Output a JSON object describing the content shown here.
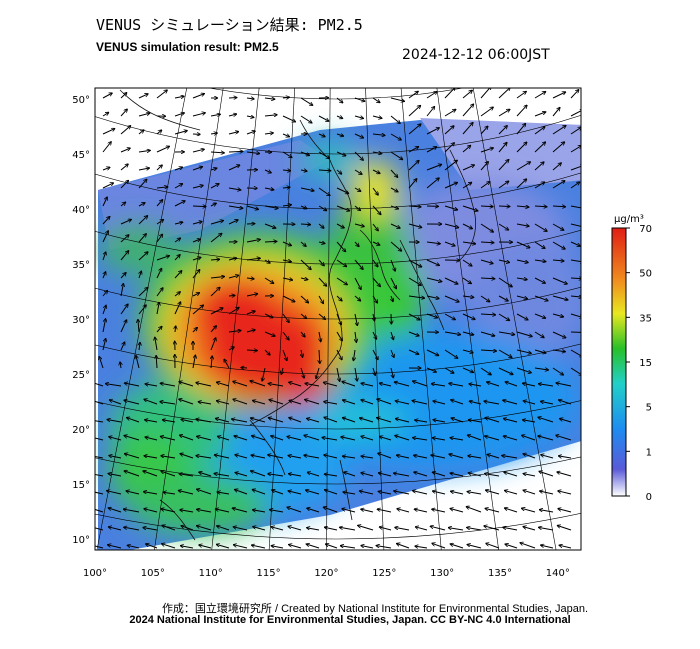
{
  "header": {
    "title_jp": "VENUS シミュレーション結果: PM2.5",
    "title_en": "VENUS simulation result: PM2.5",
    "timestamp": "2024-12-12 06:00JST"
  },
  "map": {
    "lon_ticks": [
      "100°",
      "105°",
      "110°",
      "115°",
      "120°",
      "125°",
      "130°",
      "135°",
      "140°"
    ],
    "lat_ticks": [
      "50°",
      "45°",
      "40°",
      "35°",
      "30°",
      "25°",
      "20°",
      "15°",
      "10°"
    ],
    "lon_values": [
      100,
      105,
      110,
      115,
      120,
      125,
      130,
      135,
      140
    ],
    "lat_values": [
      50,
      45,
      40,
      35,
      30,
      25,
      20,
      15,
      10
    ],
    "lon_range": [
      100,
      142
    ],
    "lat_range": [
      9,
      51
    ],
    "hotspot": {
      "lon": 113,
      "lat": 26
    },
    "colors": {
      "very_low": "#8890e0",
      "low": "#2f8af0",
      "mid": "#2fd2c0",
      "green": "#3ac83a",
      "yellow": "#e8e030",
      "orange": "#f09020",
      "red": "#e8281a"
    }
  },
  "colorbar": {
    "unit": "μg/m³",
    "ticks": [
      "70",
      "50",
      "35",
      "15",
      "5",
      "1",
      "0"
    ],
    "tick_values": [
      70,
      50,
      35,
      15,
      5,
      1,
      0
    ],
    "gradient": [
      "#ffffff",
      "#5a5ad8",
      "#1e8cf0",
      "#22d0c8",
      "#28c028",
      "#e8e820",
      "#f09020",
      "#e01e14"
    ]
  },
  "footer": {
    "credit_line": "作成：国立環境研究所 / Created by National Institute for Environmental Studies, Japan.",
    "copyright_line": "2024 National Institute for Environmental Studies, Japan. CC BY-NC 4.0 International"
  }
}
